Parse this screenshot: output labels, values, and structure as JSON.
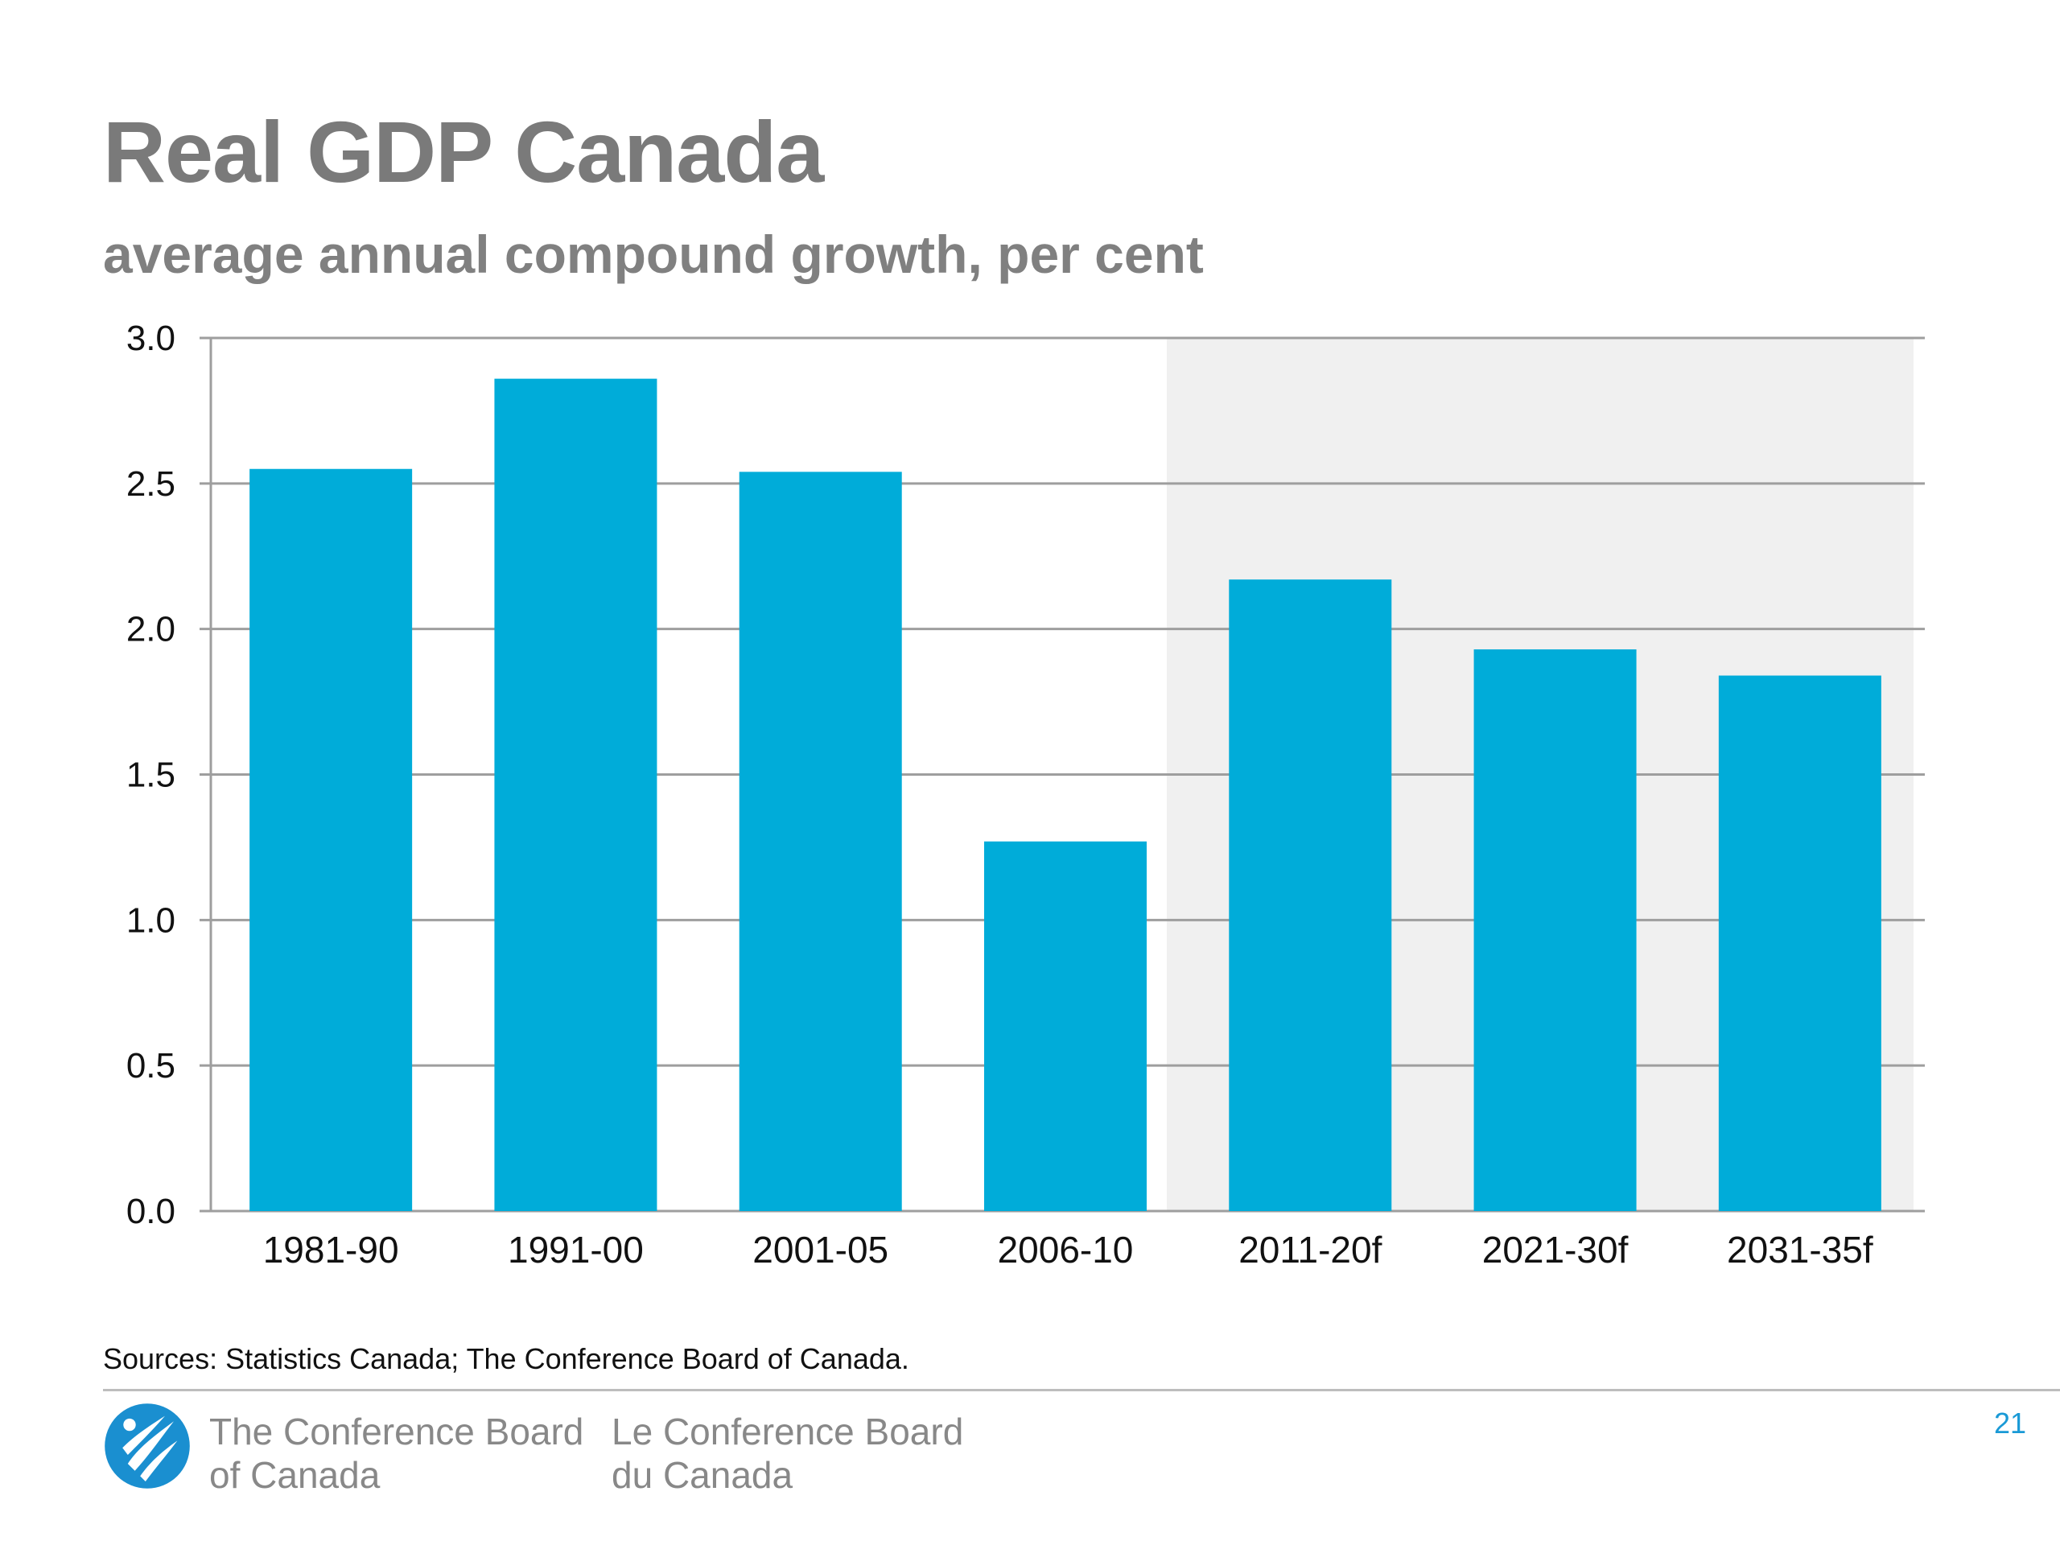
{
  "title": "Real GDP Canada",
  "subtitle": "average annual compound growth, per cent",
  "sources": "Sources: Statistics Canada; The Conference Board of Canada.",
  "footer": {
    "org_en_line1": "The Conference Board",
    "org_en_line2": "of Canada",
    "org_fr_line1": "Le Conference Board",
    "org_fr_line2": "du Canada",
    "logo_icon": "conference-board-logo-icon",
    "page_number": "21"
  },
  "colors": {
    "bar": "#00acd9",
    "forecast_shade": "#f0f0f0",
    "gridline": "#9e9e9e",
    "title": "#7a7a7a",
    "page_number": "#1a9ad6",
    "logo": "#1a8fd0"
  },
  "chart_data": {
    "type": "bar",
    "title": "Real GDP Canada",
    "subtitle": "average annual compound growth, per cent",
    "categories": [
      "1981-90",
      "1991-00",
      "2001-05",
      "2006-10",
      "2011-20f",
      "2021-30f",
      "2031-35f"
    ],
    "values": [
      2.55,
      2.86,
      2.54,
      1.27,
      2.17,
      1.93,
      1.84
    ],
    "ylim": [
      0,
      3.0
    ],
    "yticks": [
      "0.0",
      "0.5",
      "1.0",
      "1.5",
      "2.0",
      "2.5",
      "3.0"
    ],
    "grid": true,
    "forecast_shaded_categories": [
      "2011-20f",
      "2021-30f",
      "2031-35f"
    ],
    "xlabel": "",
    "ylabel": ""
  }
}
